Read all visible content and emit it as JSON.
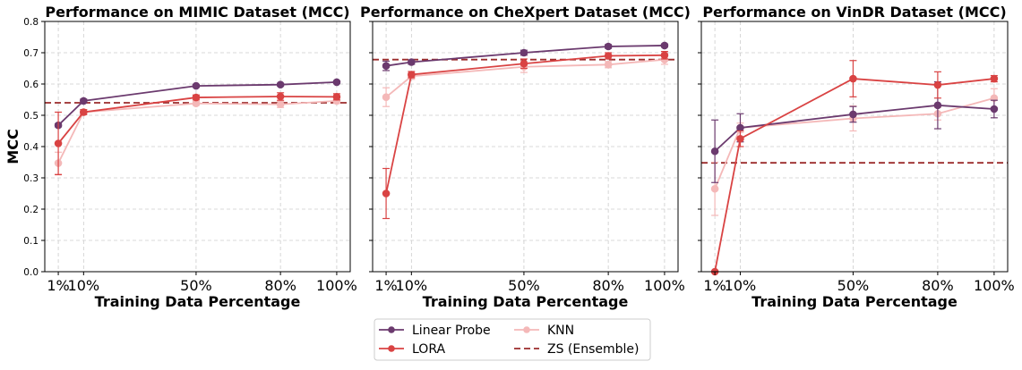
{
  "chart_data": [
    {
      "type": "line",
      "title": "Performance on MIMIC Dataset (MCC)",
      "xlabel": "Training Data Percentage",
      "ylabel": "MCC",
      "x": [
        1,
        10,
        50,
        80,
        100
      ],
      "xticklabels": [
        "1%",
        "10%",
        "50%",
        "80%",
        "100%"
      ],
      "ylim": [
        0.0,
        0.8
      ],
      "yticks": [
        "0.0",
        "0.1",
        "0.2",
        "0.3",
        "0.4",
        "0.5",
        "0.6",
        "0.7",
        "0.8"
      ],
      "grid": true,
      "series": [
        {
          "name": "Linear Probe",
          "values": [
            0.468,
            0.546,
            0.594,
            0.598,
            0.606
          ],
          "errors": [
            0.005,
            0.006,
            0.004,
            0.004,
            0.004
          ]
        },
        {
          "name": "LORA",
          "values": [
            0.41,
            0.51,
            0.557,
            0.56,
            0.559
          ],
          "errors": [
            0.1,
            0.008,
            0.008,
            0.012,
            0.01
          ]
        },
        {
          "name": "KNN",
          "values": [
            0.347,
            0.51,
            0.538,
            0.535,
            0.546
          ],
          "errors": [
            0.035,
            0.008,
            0.006,
            0.01,
            0.008
          ]
        }
      ],
      "reference_line": {
        "name": "ZS (Ensemble)",
        "value": 0.54
      }
    },
    {
      "type": "line",
      "title": "Performance on CheXpert Dataset (MCC)",
      "xlabel": "Training Data Percentage",
      "ylabel": "",
      "x": [
        1,
        10,
        50,
        80,
        100
      ],
      "xticklabels": [
        "1%",
        "10%",
        "50%",
        "80%",
        "100%"
      ],
      "ylim": [
        0.0,
        0.8
      ],
      "yticks": [],
      "grid": true,
      "series": [
        {
          "name": "Linear Probe",
          "values": [
            0.658,
            0.67,
            0.7,
            0.72,
            0.723
          ],
          "errors": [
            0.015,
            0.007,
            0.008,
            0.006,
            0.005
          ]
        },
        {
          "name": "LORA",
          "values": [
            0.25,
            0.63,
            0.665,
            0.69,
            0.692
          ],
          "errors": [
            0.08,
            0.01,
            0.015,
            0.01,
            0.012
          ]
        },
        {
          "name": "KNN",
          "values": [
            0.558,
            0.625,
            0.655,
            0.662,
            0.678
          ],
          "errors": [
            0.03,
            0.01,
            0.018,
            0.01,
            0.015
          ]
        }
      ],
      "reference_line": {
        "name": "ZS (Ensemble)",
        "value": 0.678
      }
    },
    {
      "type": "line",
      "title": "Performance on VinDR Dataset (MCC)",
      "xlabel": "Training Data Percentage",
      "ylabel": "",
      "x": [
        1,
        10,
        50,
        80,
        100
      ],
      "xticklabels": [
        "1%",
        "10%",
        "50%",
        "80%",
        "100%"
      ],
      "ylim": [
        0.0,
        0.8
      ],
      "yticks": [],
      "grid": true,
      "series": [
        {
          "name": "Linear Probe",
          "values": [
            0.385,
            0.46,
            0.503,
            0.532,
            0.52
          ],
          "errors": [
            0.1,
            0.045,
            0.025,
            0.075,
            0.028
          ]
        },
        {
          "name": "LORA",
          "values": [
            0.0,
            0.425,
            0.617,
            0.597,
            0.617
          ],
          "errors": [
            0.0,
            0.025,
            0.058,
            0.042,
            0.01
          ]
        },
        {
          "name": "KNN",
          "values": [
            0.265,
            0.46,
            0.49,
            0.505,
            0.555
          ],
          "errors": [
            0.085,
            0.015,
            0.04,
            0.02,
            0.03
          ]
        }
      ],
      "reference_line": {
        "name": "ZS (Ensemble)",
        "value": 0.348
      }
    }
  ],
  "legend": {
    "placement": "bottom-center",
    "items": [
      {
        "label": "Linear Probe",
        "color": "#6b3a6e",
        "style": "line-marker"
      },
      {
        "label": "LORA",
        "color": "#d94343",
        "style": "line-marker"
      },
      {
        "label": "KNN",
        "color": "#f4b8b8",
        "style": "line-marker"
      },
      {
        "label": "ZS (Ensemble)",
        "color": "#9b2b2b",
        "style": "dashed"
      }
    ]
  },
  "colors": {
    "Linear Probe": "#6b3a6e",
    "LORA": "#d94343",
    "KNN": "#f4b8b8",
    "ZS (Ensemble)": "#9b2b2b"
  }
}
